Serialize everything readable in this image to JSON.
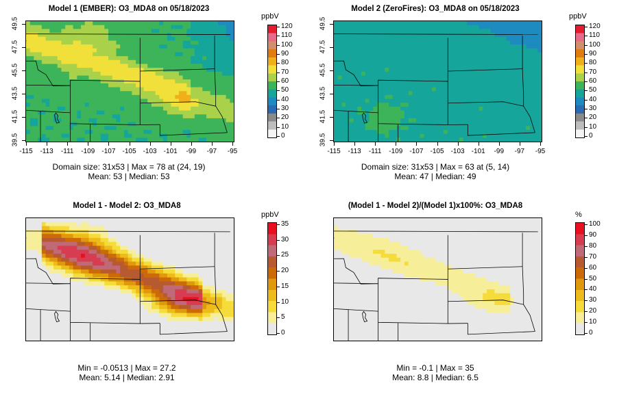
{
  "panels": [
    {
      "id": "p1",
      "title": "Model 1 (EMBER): O3_MDA8 on 05/18/2023",
      "info1": "Domain size: 31x53 | Max = 78 at (24, 19)",
      "info2": "Mean: 53 |  Median: 53",
      "scale_title": "ppbV",
      "scale_ticks": [
        "0",
        "10",
        "20",
        "30",
        "40",
        "50",
        "60",
        "70",
        "80",
        "90",
        "100",
        "110",
        "120"
      ],
      "scale_max": 120,
      "palette": "full",
      "field_hint": "ember",
      "x_ticks": [
        "-115",
        "-113",
        "-111",
        "-109",
        "-107",
        "-105",
        "-103",
        "-101",
        "-99",
        "-97",
        "-95"
      ],
      "y_ticks": [
        "39.5",
        "41.5",
        "43.5",
        "45.5",
        "47.5",
        "49.5"
      ],
      "show_axes": true
    },
    {
      "id": "p2",
      "title": "Model 2 (ZeroFires): O3_MDA8 on 05/18/2023",
      "info1": "Domain size: 31x53 | Max = 63 at (5, 14)",
      "info2": "Mean: 47 |  Median: 49",
      "scale_title": "ppbV",
      "scale_ticks": [
        "0",
        "10",
        "20",
        "30",
        "40",
        "50",
        "60",
        "70",
        "80",
        "90",
        "100",
        "110",
        "120"
      ],
      "scale_max": 120,
      "palette": "full",
      "field_hint": "zerofires",
      "x_ticks": [
        "-115",
        "-113",
        "-111",
        "-109",
        "-107",
        "-105",
        "-103",
        "-101",
        "-99",
        "-97",
        "-95"
      ],
      "y_ticks": [
        "39.5",
        "41.5",
        "43.5",
        "45.5",
        "47.5",
        "49.5"
      ],
      "show_axes": true
    },
    {
      "id": "p3",
      "title": "Model 1 - Model 2: O3_MDA8",
      "info1": "Min = -0.0513 | Max = 27.2",
      "info2": "Mean: 5.14 |  Median: 2.91",
      "scale_title": "ppbV",
      "scale_ticks": [
        "0",
        "5",
        "10",
        "15",
        "20",
        "25",
        "30",
        "35"
      ],
      "scale_max": 35,
      "palette": "diff",
      "field_hint": "diff",
      "show_axes": false
    },
    {
      "id": "p4",
      "title": "(Model 1 - Model 2)/(Model 1)x100%: O3_MDA8",
      "info1": "Min = -0.1 | Max = 35",
      "info2": "Mean: 8.8 |  Median: 6.5",
      "scale_title": "%",
      "scale_ticks": [
        "0",
        "10",
        "20",
        "30",
        "40",
        "50",
        "60",
        "70",
        "80",
        "90",
        "100"
      ],
      "scale_max": 100,
      "palette": "diff",
      "field_hint": "pct",
      "show_axes": false
    }
  ],
  "colors": {
    "full": [
      "#f5f5f5",
      "#bdbdbd",
      "#8a8a8a",
      "#2b6bb3",
      "#1d8bbf",
      "#16a59a",
      "#3db45a",
      "#a9d24a",
      "#f2e03a",
      "#f0b01c",
      "#e07c10",
      "#d0906a",
      "#e86a8a",
      "#e61c2e"
    ],
    "diff": [
      "#e8e8e8",
      "#f7ee9a",
      "#f5dc3a",
      "#eebc1a",
      "#e0980c",
      "#cc6a08",
      "#b85a30",
      "#c06a78",
      "#d83c50",
      "#e8101e"
    ]
  }
}
